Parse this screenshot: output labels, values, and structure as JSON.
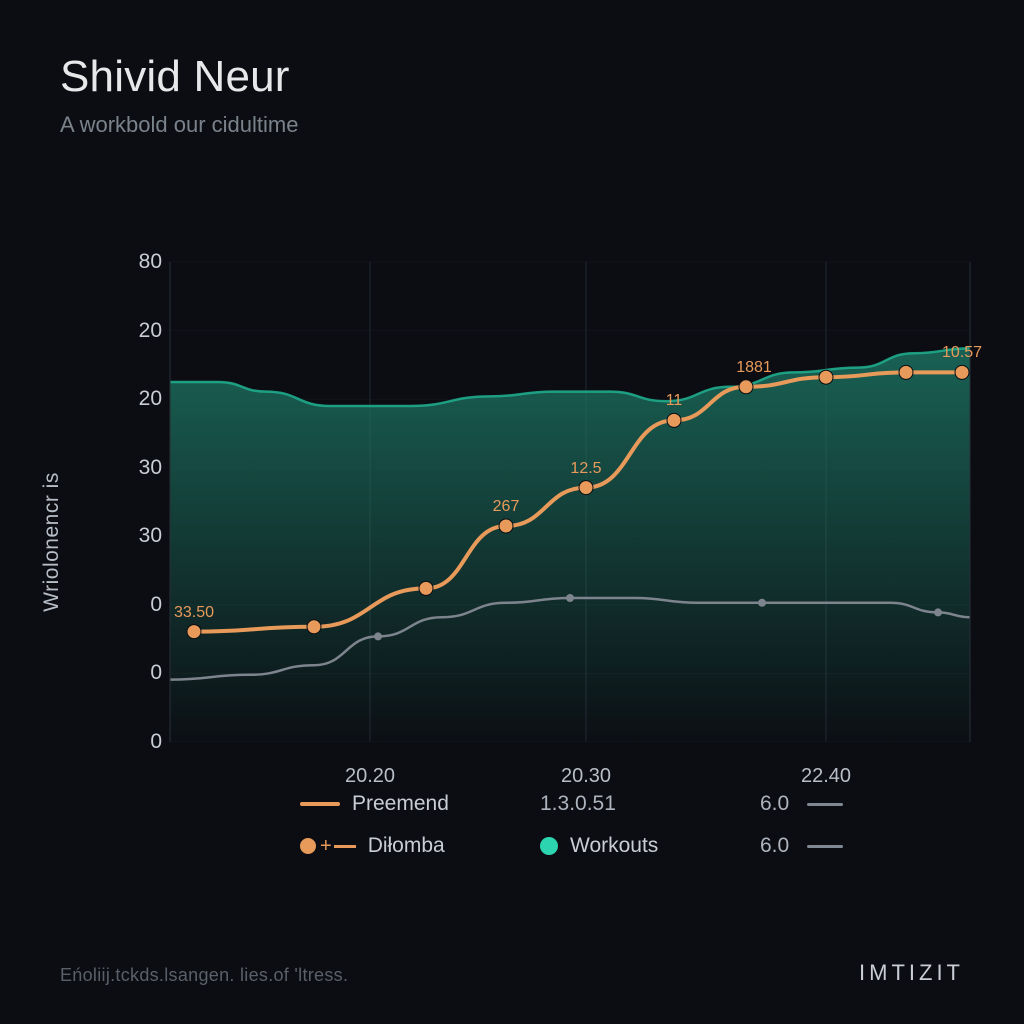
{
  "header": {
    "title": "Shivid Neur",
    "subtitle": "A workbold our cidultime"
  },
  "chart": {
    "type": "line+area",
    "background_color": "#0b0d12",
    "plot_bg": "#0b0d12",
    "grid_color": "#222630",
    "ylabel": "Wriolonencr is",
    "ylabel_fontsize": 21,
    "ytick_fontsize": 21,
    "xtick_fontsize": 20,
    "y_ticks": [
      "80",
      "20",
      "20",
      "30",
      "30",
      "0",
      "0",
      "0"
    ],
    "y_tick_positions_pct": [
      0,
      14.3,
      28.6,
      42.9,
      57.1,
      71.4,
      85.7,
      100
    ],
    "x_ticks": [
      "20.20",
      "20.30",
      "22.40"
    ],
    "x_tick_positions_pct": [
      25,
      52,
      82
    ],
    "series": {
      "area": {
        "name": "Workouts",
        "color": "#1fab8c",
        "fill_top": "#1e7d6a",
        "fill_bottom": "rgba(20,70,62,0.02)",
        "opacity": 0.75,
        "points_pct": [
          [
            0,
            25
          ],
          [
            6,
            25
          ],
          [
            12,
            27
          ],
          [
            20,
            30
          ],
          [
            30,
            30
          ],
          [
            40,
            28
          ],
          [
            48,
            27
          ],
          [
            55,
            27
          ],
          [
            62,
            29
          ],
          [
            70,
            26
          ],
          [
            78,
            23
          ],
          [
            86,
            22
          ],
          [
            93,
            19
          ],
          [
            100,
            18
          ]
        ]
      },
      "orange": {
        "name": "Preemend",
        "color": "#e89a5a",
        "line_width": 4,
        "marker_size": 7,
        "marker_fill": "#e89a5a",
        "points_pct": [
          [
            3,
            77
          ],
          [
            18,
            76
          ],
          [
            32,
            68
          ],
          [
            42,
            55
          ],
          [
            52,
            47
          ],
          [
            63,
            33
          ],
          [
            72,
            26
          ],
          [
            82,
            24
          ],
          [
            92,
            23
          ],
          [
            99,
            23
          ]
        ],
        "labels": [
          {
            "x_pct": 3,
            "y_pct": 77,
            "text": "33.50"
          },
          {
            "x_pct": 42,
            "y_pct": 55,
            "text": "267"
          },
          {
            "x_pct": 52,
            "y_pct": 47,
            "text": "12.5"
          },
          {
            "x_pct": 63,
            "y_pct": 33,
            "text": "11"
          },
          {
            "x_pct": 73,
            "y_pct": 26,
            "text": "1881"
          },
          {
            "x_pct": 99,
            "y_pct": 23,
            "text": "10.57"
          }
        ]
      },
      "gray": {
        "name": "gray-series",
        "color": "#7d848e",
        "line_width": 2.5,
        "marker_size": 4,
        "points_pct": [
          [
            0,
            87
          ],
          [
            10,
            86
          ],
          [
            18,
            84
          ],
          [
            26,
            78
          ],
          [
            34,
            74
          ],
          [
            42,
            71
          ],
          [
            50,
            70
          ],
          [
            58,
            70
          ],
          [
            66,
            71
          ],
          [
            74,
            71
          ],
          [
            82,
            71
          ],
          [
            90,
            71
          ],
          [
            96,
            73
          ],
          [
            100,
            74
          ]
        ]
      }
    },
    "legend": {
      "rows": [
        [
          {
            "swatch": "line",
            "color": "#e89a5a",
            "label": "Preemend"
          },
          {
            "swatch": "text",
            "label": "1.3.0.51"
          },
          {
            "swatch": "gray-right",
            "label": "6.0"
          }
        ],
        [
          {
            "swatch": "dot-line",
            "color": "#e89a5a",
            "label": "Diłomba"
          },
          {
            "swatch": "dot",
            "color": "#2cd4b0",
            "label": "Workouts"
          },
          {
            "swatch": "gray-right",
            "label": "6.0"
          }
        ]
      ]
    }
  },
  "footer": {
    "left": "Eńoliij.tckds.lsangen. lies.of 'ltress.",
    "right": "IMTIZIT"
  }
}
